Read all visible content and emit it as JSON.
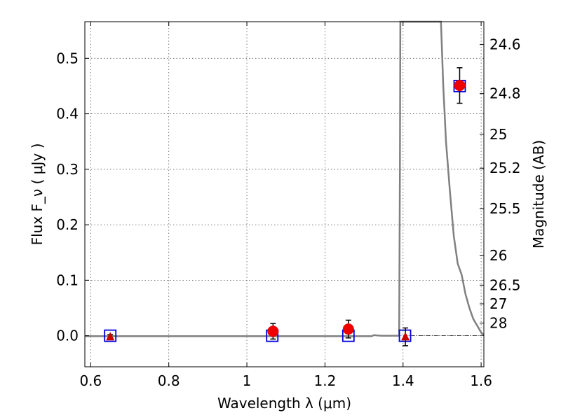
{
  "chart_data": {
    "type": "scatter",
    "xlabel": "Wavelength  λ (μm)",
    "ylabel": "Flux  F_ν  ( μJy )",
    "ylabel_right": "Magnitude (AB)",
    "xlim": [
      0.585,
      1.607
    ],
    "ylim": [
      -0.056,
      0.566
    ],
    "x_ticks": [
      {
        "value": 0.6,
        "label": "0.6"
      },
      {
        "value": 0.8,
        "label": "0.8"
      },
      {
        "value": 1.0,
        "label": "1"
      },
      {
        "value": 1.2,
        "label": "1.2"
      },
      {
        "value": 1.4,
        "label": "1.4"
      },
      {
        "value": 1.6,
        "label": "1.6"
      }
    ],
    "y_ticks": [
      {
        "value": 0.0,
        "label": "0.0"
      },
      {
        "value": 0.1,
        "label": "0.1"
      },
      {
        "value": 0.2,
        "label": "0.2"
      },
      {
        "value": 0.3,
        "label": "0.3"
      },
      {
        "value": 0.4,
        "label": "0.4"
      },
      {
        "value": 0.5,
        "label": "0.5"
      }
    ],
    "right_ticks": [
      {
        "flux": 0.5248,
        "label": "24.6"
      },
      {
        "flux": 0.4365,
        "label": "24.8"
      },
      {
        "flux": 0.3631,
        "label": "25"
      },
      {
        "flux": 0.302,
        "label": "25.2"
      },
      {
        "flux": 0.2291,
        "label": "25.5"
      },
      {
        "flux": 0.1445,
        "label": "26"
      },
      {
        "flux": 0.0912,
        "label": "26.5"
      },
      {
        "flux": 0.0575,
        "label": "27"
      },
      {
        "flux": 0.0229,
        "label": "28"
      }
    ],
    "grid": true,
    "series": [
      {
        "marker": "square",
        "color": "#0000dd",
        "points": [
          {
            "x": 0.65,
            "y": 0.0
          },
          {
            "x": 1.065,
            "y": 0.0
          },
          {
            "x": 1.26,
            "y": 0.0
          },
          {
            "x": 1.405,
            "y": 0.0
          },
          {
            "x": 1.545,
            "y": 0.45
          }
        ]
      },
      {
        "marker": "circle",
        "color": "#ee0000",
        "points": [
          {
            "x": 1.067,
            "y": 0.008,
            "err": 0.014
          },
          {
            "x": 1.26,
            "y": 0.012,
            "err": 0.016
          },
          {
            "x": 1.545,
            "y": 0.451,
            "err": 0.032
          }
        ]
      },
      {
        "marker": "triangle",
        "color": "#cc0000",
        "points": [
          {
            "x": 0.65,
            "y": -0.002,
            "err": 0.004
          },
          {
            "x": 1.406,
            "y": -0.002,
            "err": 0.016
          }
        ]
      }
    ],
    "model_curve": {
      "color": "#808080",
      "points": [
        [
          0.585,
          -0.0008
        ],
        [
          1.32,
          -0.0008
        ],
        [
          1.325,
          0.001
        ],
        [
          1.335,
          0.0005
        ],
        [
          1.345,
          0.0
        ],
        [
          1.39,
          0.0
        ],
        [
          1.392,
          0.3
        ],
        [
          1.393,
          0.566
        ],
        [
          1.497,
          0.566
        ],
        [
          1.503,
          0.45
        ],
        [
          1.51,
          0.35
        ],
        [
          1.52,
          0.26
        ],
        [
          1.53,
          0.18
        ],
        [
          1.54,
          0.13
        ],
        [
          1.55,
          0.11
        ],
        [
          1.56,
          0.075
        ],
        [
          1.57,
          0.05
        ],
        [
          1.58,
          0.03
        ],
        [
          1.59,
          0.018
        ],
        [
          1.6,
          0.006
        ],
        [
          1.607,
          0.001
        ]
      ]
    },
    "zero_line": {
      "y": 0.0,
      "from_x": 1.4,
      "to_x": 1.607,
      "color": "#000000"
    }
  }
}
